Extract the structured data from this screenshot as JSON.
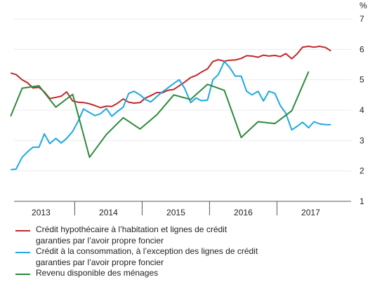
{
  "chart_data": {
    "type": "line",
    "unit_label": "%",
    "ylim": [
      1,
      7
    ],
    "yticks": [
      "1",
      "2",
      "3",
      "4",
      "5",
      "6",
      "7"
    ],
    "xlim": [
      2012.6,
      2017.6
    ],
    "xticks": [
      {
        "label": "2013",
        "x": 2013.0
      },
      {
        "label": "2014",
        "x": 2014.0
      },
      {
        "label": "2015",
        "x": 2015.0
      },
      {
        "label": "2016",
        "x": 2016.0
      },
      {
        "label": "2017",
        "x": 2017.0
      }
    ],
    "year_boundaries": [
      2013.5,
      2014.5,
      2015.5,
      2016.5
    ],
    "series": [
      {
        "name_lines": [
          "Crédit hypothécaire à l’habitation et lignes de crédit",
          "garanties par l’avoir propre foncier"
        ],
        "color": "#c0282a",
        "x": [
          2012.55,
          2012.63,
          2012.72,
          2012.8,
          2012.88,
          2012.97,
          2013.05,
          2013.13,
          2013.22,
          2013.3,
          2013.38,
          2013.47,
          2013.55,
          2013.63,
          2013.72,
          2013.8,
          2013.88,
          2013.97,
          2014.05,
          2014.13,
          2014.22,
          2014.3,
          2014.38,
          2014.47,
          2014.55,
          2014.63,
          2014.72,
          2014.8,
          2014.88,
          2014.97,
          2015.05,
          2015.13,
          2015.22,
          2015.3,
          2015.38,
          2015.47,
          2015.55,
          2015.63,
          2015.72,
          2015.8,
          2015.88,
          2015.97,
          2016.05,
          2016.13,
          2016.22,
          2016.3,
          2016.38,
          2016.47,
          2016.55,
          2016.63,
          2016.72,
          2016.8,
          2016.88,
          2016.97,
          2017.05,
          2017.13,
          2017.22,
          2017.3
        ],
        "values": [
          5.22,
          5.17,
          5.0,
          4.9,
          4.73,
          4.75,
          4.6,
          4.38,
          4.42,
          4.46,
          4.6,
          4.3,
          4.26,
          4.25,
          4.21,
          4.15,
          4.08,
          4.13,
          4.12,
          4.22,
          4.37,
          4.26,
          4.23,
          4.25,
          4.4,
          4.48,
          4.58,
          4.57,
          4.65,
          4.68,
          4.8,
          4.92,
          5.07,
          5.14,
          5.25,
          5.36,
          5.6,
          5.66,
          5.61,
          5.64,
          5.65,
          5.7,
          5.79,
          5.78,
          5.74,
          5.81,
          5.78,
          5.8,
          5.76,
          5.86,
          5.69,
          5.85,
          6.07,
          6.1,
          6.07,
          6.1,
          6.06,
          5.95
        ]
      },
      {
        "name_lines": [
          "Crédit à la consommation, à l’exception des lignes de crédit",
          "garanties par l’avoir propre foncier"
        ],
        "color": "#1fa8e1",
        "x": [
          2012.55,
          2012.63,
          2012.72,
          2012.8,
          2012.88,
          2012.97,
          2013.05,
          2013.13,
          2013.22,
          2013.3,
          2013.38,
          2013.47,
          2013.55,
          2013.63,
          2013.72,
          2013.8,
          2013.88,
          2013.97,
          2014.05,
          2014.13,
          2014.22,
          2014.3,
          2014.38,
          2014.47,
          2014.55,
          2014.63,
          2014.72,
          2014.8,
          2014.88,
          2014.97,
          2015.05,
          2015.13,
          2015.22,
          2015.3,
          2015.38,
          2015.47,
          2015.55,
          2015.63,
          2015.72,
          2015.8,
          2015.88,
          2015.97,
          2016.05,
          2016.13,
          2016.22,
          2016.3,
          2016.38,
          2016.47,
          2016.55,
          2016.63,
          2016.72,
          2016.8,
          2016.88,
          2016.97,
          2017.05,
          2017.13,
          2017.22,
          2017.3
        ],
        "values": [
          2.04,
          2.06,
          2.45,
          2.63,
          2.78,
          2.78,
          3.22,
          2.9,
          3.07,
          2.92,
          3.07,
          3.3,
          3.63,
          4.04,
          3.92,
          3.82,
          3.88,
          4.05,
          3.8,
          3.95,
          4.1,
          4.55,
          4.62,
          4.5,
          4.35,
          4.27,
          4.45,
          4.6,
          4.73,
          4.88,
          5.0,
          4.72,
          4.25,
          4.4,
          4.31,
          4.33,
          5.0,
          5.17,
          5.6,
          5.4,
          5.12,
          5.12,
          4.62,
          4.5,
          4.62,
          4.3,
          4.62,
          4.55,
          4.15,
          3.9,
          3.35,
          3.47,
          3.6,
          3.42,
          3.62,
          3.55,
          3.52,
          3.52
        ]
      },
      {
        "name_lines": [
          "Revenu disponible des ménages"
        ],
        "color": "#2c8a3c",
        "x": [
          2012.55,
          2012.72,
          2012.97,
          2013.22,
          2013.47,
          2013.72,
          2013.97,
          2014.22,
          2014.47,
          2014.72,
          2014.97,
          2015.22,
          2015.47,
          2015.72,
          2015.97,
          2016.22,
          2016.47,
          2016.72,
          2016.97
        ],
        "values": [
          3.8,
          4.72,
          4.8,
          4.1,
          4.52,
          2.45,
          3.2,
          3.75,
          3.38,
          3.85,
          4.5,
          4.35,
          4.85,
          4.65,
          3.1,
          3.62,
          3.56,
          3.98,
          5.27
        ]
      }
    ]
  }
}
